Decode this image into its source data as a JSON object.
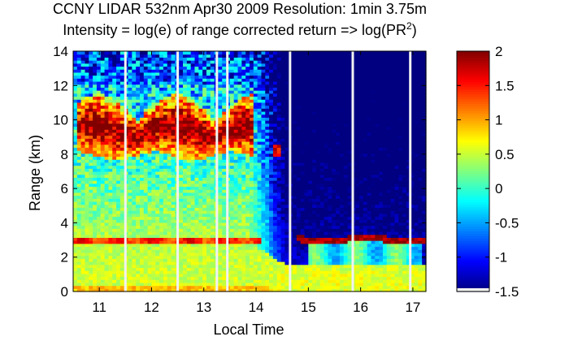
{
  "chart_data": {
    "type": "heatmap",
    "title_line1": "CCNY LIDAR 532nm Apr30 2009 Resolution: 1min 3.75m",
    "title_line2_prefix": "Intensity = log(e) of range corrected return => log(PR",
    "title_line2_sup": "2",
    "title_line2_suffix": ")",
    "xlabel": "Local Time",
    "ylabel": "Range (km)",
    "xlim": [
      10.5,
      17.25
    ],
    "ylim": [
      0,
      14
    ],
    "x_ticks": [
      11,
      12,
      13,
      14,
      15,
      16,
      17
    ],
    "x_tick_labels": [
      "11",
      "12",
      "13",
      "14",
      "15",
      "16",
      "17"
    ],
    "y_ticks": [
      0,
      2,
      4,
      6,
      8,
      10,
      12,
      14
    ],
    "y_tick_labels": [
      "0",
      "2",
      "4",
      "6",
      "8",
      "10",
      "12",
      "14"
    ],
    "colorbar": {
      "colormap": "jet",
      "clim": [
        -1.5,
        2
      ],
      "ticks": [
        2,
        1.5,
        1,
        0.5,
        0,
        -0.5,
        -1,
        -1.5
      ],
      "tick_labels": [
        "2",
        "1.5",
        "1",
        "0.5",
        "0",
        "-0.5",
        "-1",
        "-1.5"
      ]
    },
    "data_gaps_local_time": [
      11.5,
      12.5,
      13.25,
      13.45,
      14.65,
      15.85,
      16.95
    ],
    "features": [
      {
        "name": "cirrus",
        "x_range": [
          10.6,
          13.95
        ],
        "y_range": [
          7.5,
          12.8
        ],
        "value": 1.9
      },
      {
        "name": "cirrus-trace",
        "x_range": [
          14.3,
          14.45
        ],
        "y_range": [
          7.8,
          8.6
        ],
        "value": 1.5
      },
      {
        "name": "aerosol-layer-top-early",
        "x_range": [
          10.5,
          14.1
        ],
        "y_range": [
          2.6,
          3.4
        ],
        "value": 1.6
      },
      {
        "name": "aerosol-layer-top-late",
        "x_range": [
          15.2,
          17.25
        ],
        "y_range": [
          2.8,
          3.4
        ],
        "value": 1.9
      },
      {
        "name": "boundary-layer-early",
        "x_range": [
          10.5,
          14.6
        ],
        "y_range": [
          0.2,
          2.8
        ],
        "value": 0.4
      },
      {
        "name": "boundary-layer-late",
        "x_range": [
          14.6,
          17.25
        ],
        "y_range": [
          0.1,
          1.5
        ],
        "value": 0.8
      },
      {
        "name": "surface",
        "x_range": [
          10.5,
          17.25
        ],
        "y_range": [
          0,
          0.4
        ],
        "value": 0.9
      }
    ]
  }
}
